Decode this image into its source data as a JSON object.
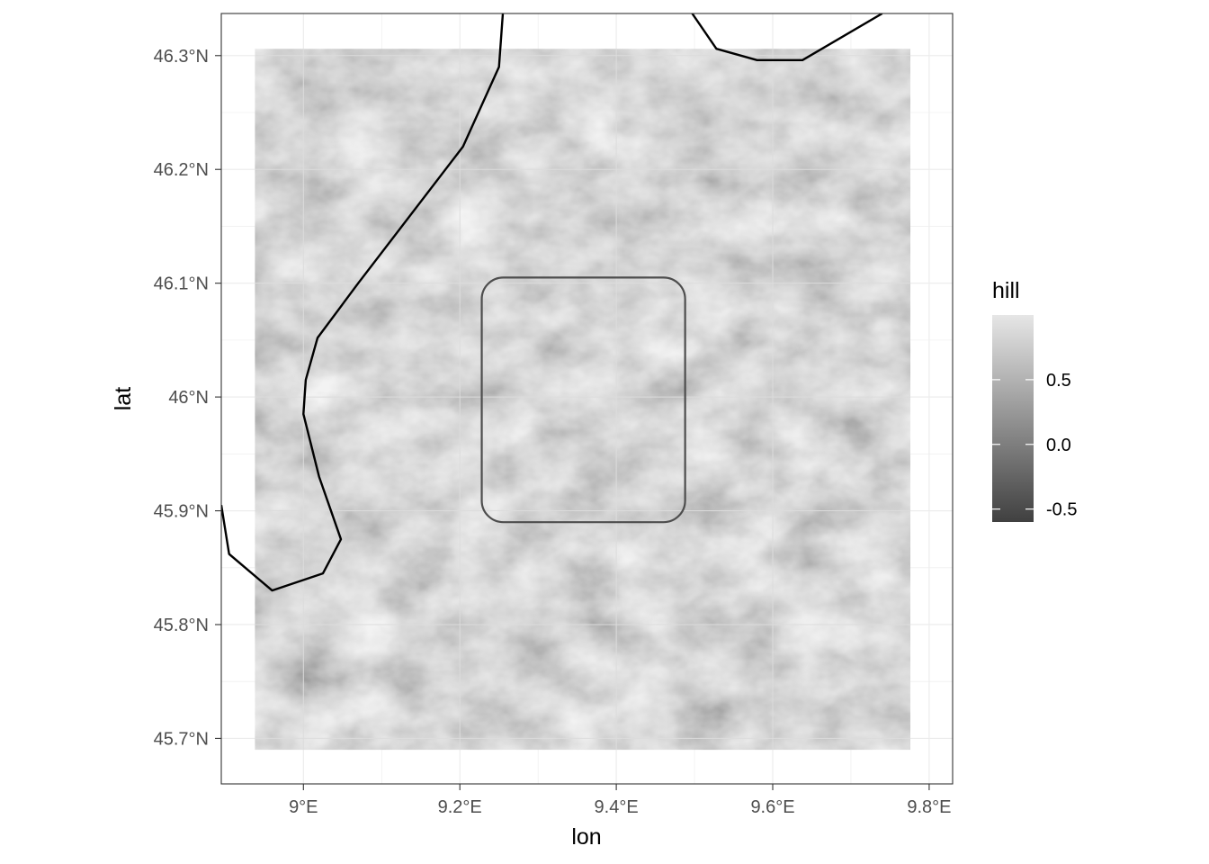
{
  "chart_data": {
    "type": "raster-map",
    "xlabel": "lon",
    "ylabel": "lat",
    "x_ticks": [
      {
        "value": 9.0,
        "label": "9°E"
      },
      {
        "value": 9.2,
        "label": "9.2°E"
      },
      {
        "value": 9.4,
        "label": "9.4°E"
      },
      {
        "value": 9.6,
        "label": "9.6°E"
      },
      {
        "value": 9.8,
        "label": "9.8°E"
      }
    ],
    "y_ticks": [
      {
        "value": 45.7,
        "label": "45.7°N"
      },
      {
        "value": 45.8,
        "label": "45.8°N"
      },
      {
        "value": 45.9,
        "label": "45.9°N"
      },
      {
        "value": 46.0,
        "label": "46°N"
      },
      {
        "value": 46.1,
        "label": "46.1°N"
      },
      {
        "value": 46.2,
        "label": "46.2°N"
      },
      {
        "value": 46.3,
        "label": "46.3°N"
      }
    ],
    "xlim": [
      8.895,
      9.83
    ],
    "ylim": [
      45.66,
      46.337
    ],
    "grid": true,
    "raster_extent": {
      "lon": [
        8.938,
        9.776
      ],
      "lat": [
        45.69,
        46.306
      ]
    },
    "fill_variable": "hill",
    "legend": {
      "title": "hill",
      "breaks": [
        {
          "value": 0.5,
          "label": "0.5"
        },
        {
          "value": 0.0,
          "label": "0.0"
        },
        {
          "value": -0.5,
          "label": "-0.5"
        }
      ],
      "range": [
        -0.6,
        1.0
      ],
      "position": "right",
      "color_low": "#404040",
      "color_high": "#e6e6e6"
    },
    "area_of_interest": {
      "shape": "rounded-rectangle",
      "lon": [
        9.228,
        9.488
      ],
      "lat": [
        45.89,
        46.105
      ],
      "stroke": "#4d4d4d"
    },
    "boundary_lines": [
      {
        "name": "western-border",
        "points": [
          [
            8.895,
            45.905
          ],
          [
            8.905,
            45.862
          ],
          [
            8.96,
            45.83
          ],
          [
            9.025,
            45.845
          ],
          [
            9.048,
            45.875
          ],
          [
            9.02,
            45.93
          ],
          [
            9.0,
            45.985
          ],
          [
            9.003,
            46.015
          ],
          [
            9.018,
            46.052
          ],
          [
            9.07,
            46.1
          ],
          [
            9.204,
            46.22
          ],
          [
            9.25,
            46.29
          ],
          [
            9.255,
            46.337
          ]
        ]
      },
      {
        "name": "northern-border",
        "points": [
          [
            9.497,
            46.337
          ],
          [
            9.528,
            46.306
          ],
          [
            9.58,
            46.296
          ],
          [
            9.638,
            46.296
          ],
          [
            9.74,
            46.337
          ]
        ]
      }
    ],
    "colors": {
      "panel_border": "#333333",
      "grid": "#ebebeb",
      "tick": "#333333",
      "border_line": "#000000"
    }
  }
}
